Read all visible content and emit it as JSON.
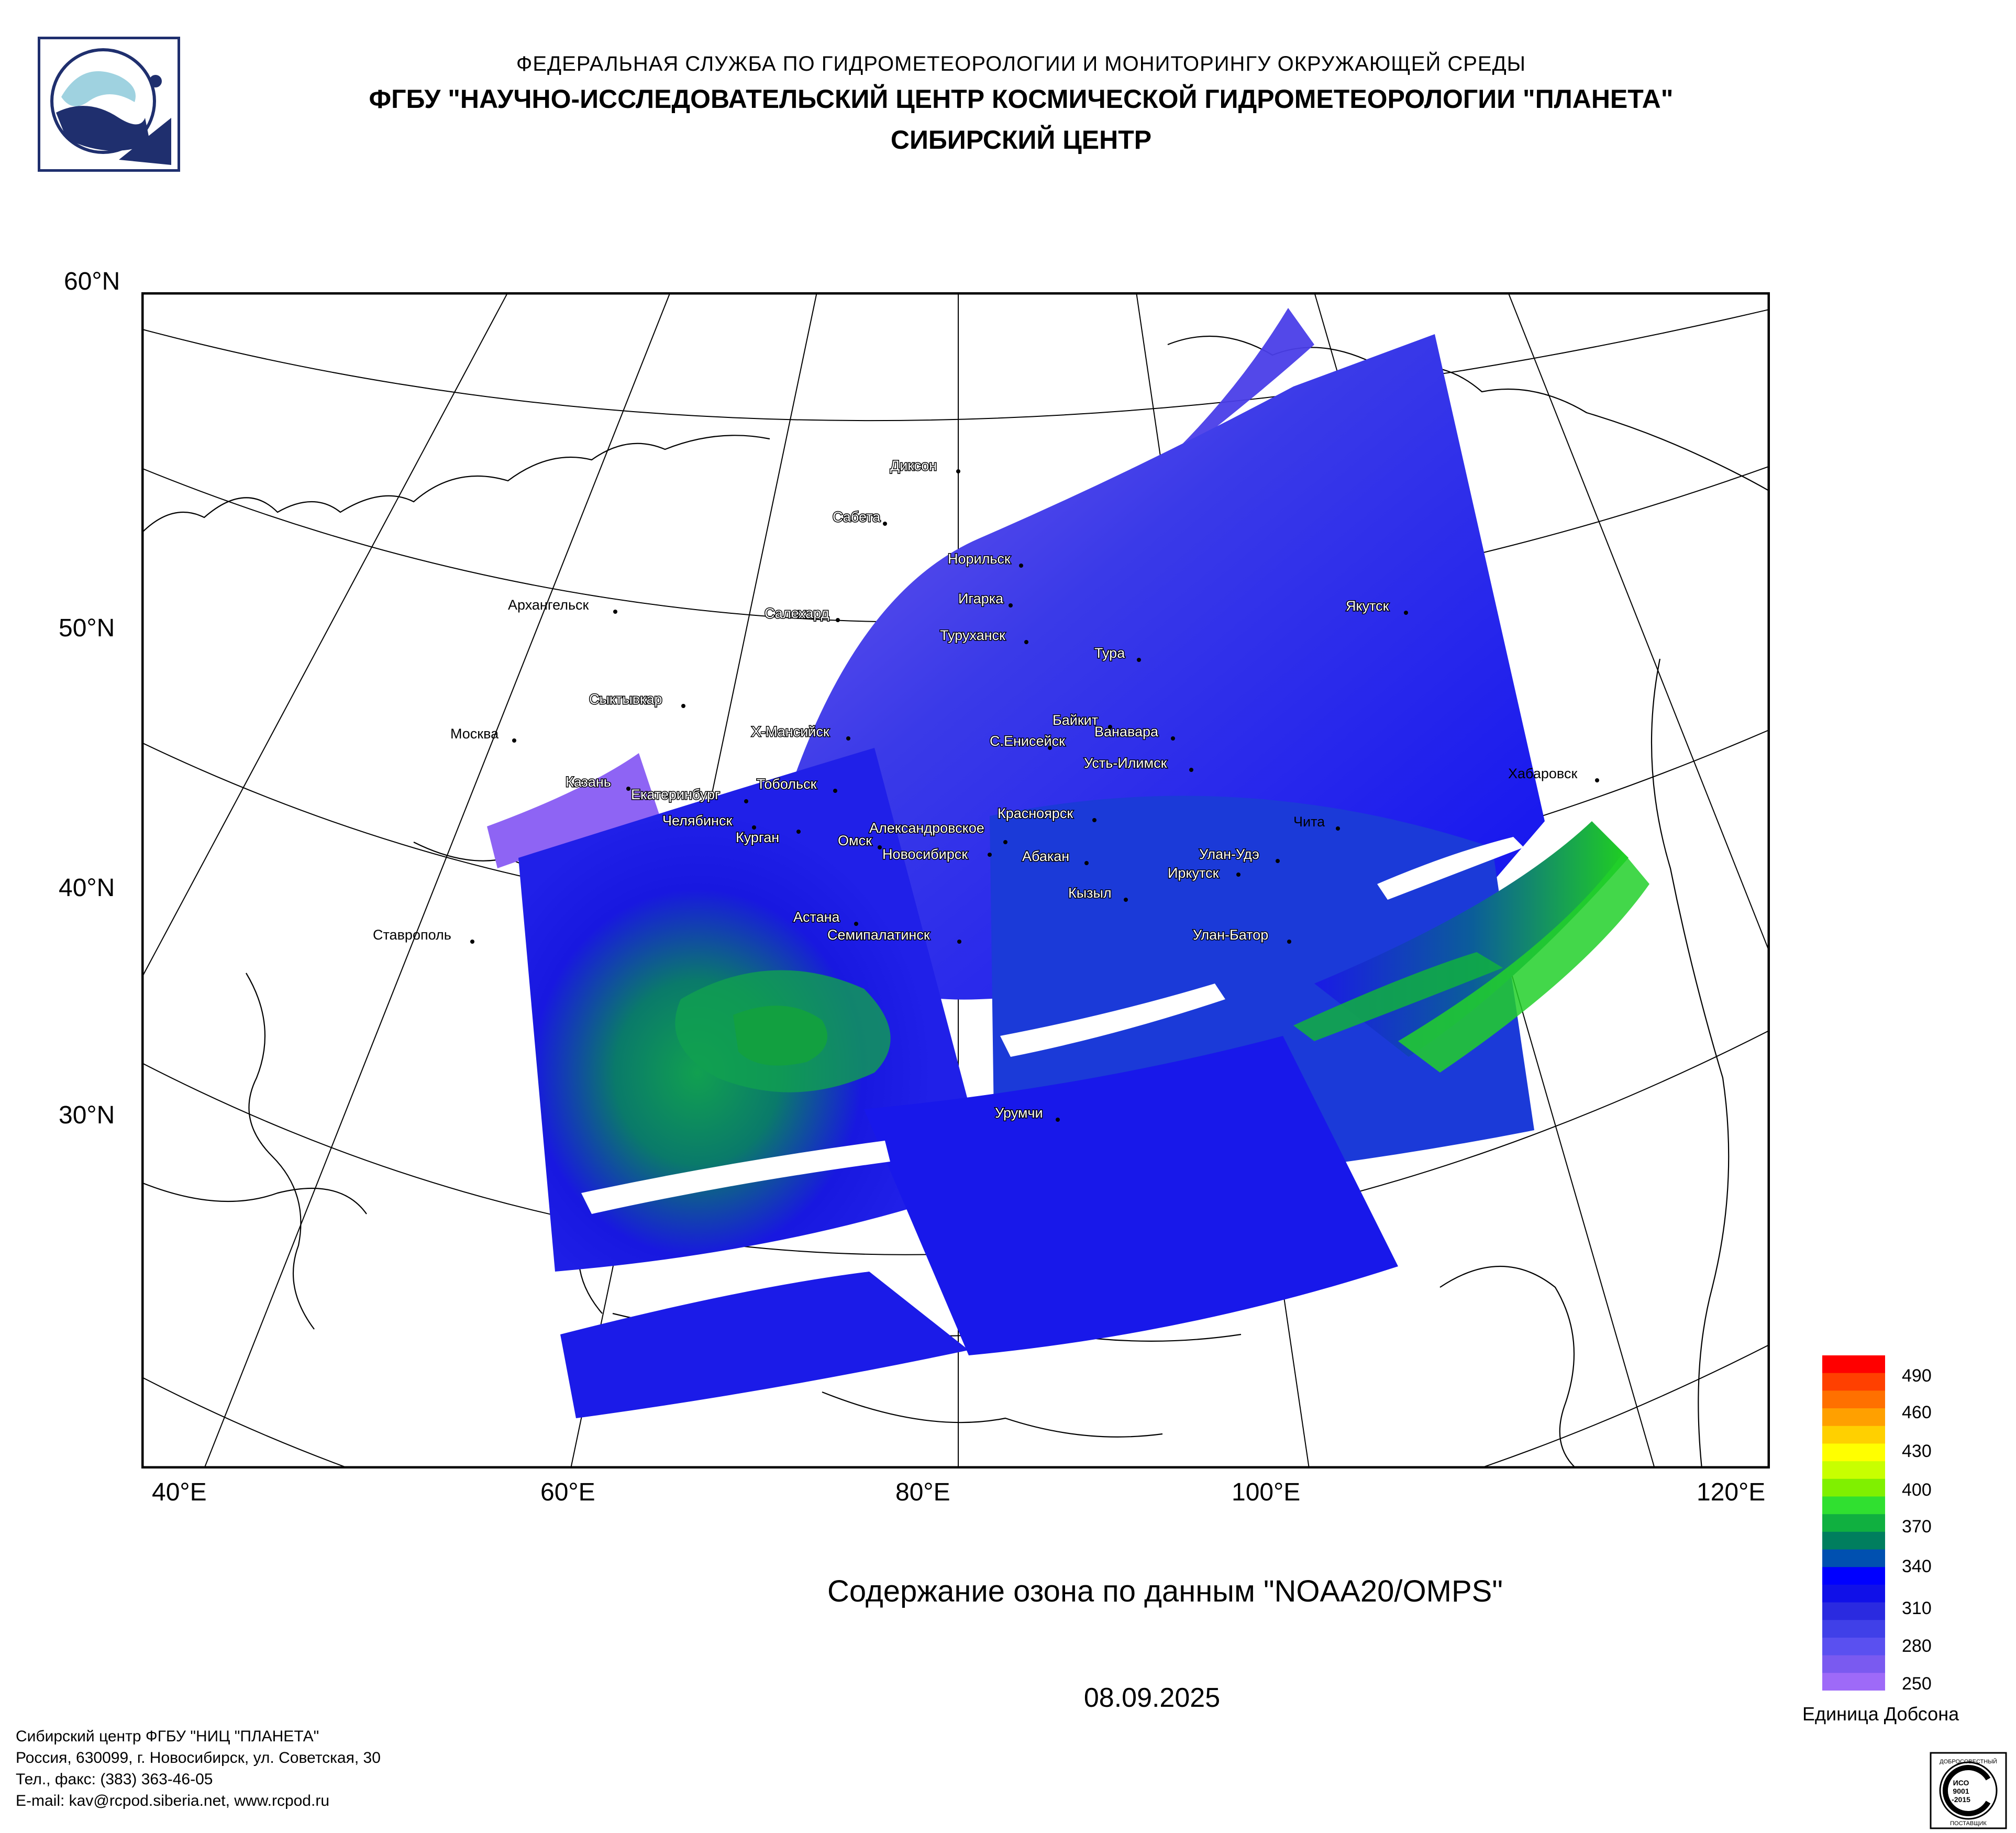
{
  "header": {
    "line1": "ФЕДЕРАЛЬНАЯ СЛУЖБА ПО ГИДРОМЕТЕОРОЛОГИИ И МОНИТОРИНГУ ОКРУЖАЮЩЕЙ СРЕДЫ",
    "line2": "ФГБУ \"НАУЧНО-ИССЛЕДОВАТЕЛЬСКИЙ ЦЕНТР КОСМИЧЕСКОЙ ГИДРОМЕТЕОРОЛОГИИ \"ПЛАНЕТА\"",
    "line3": "СИБИРСКИЙ ЦЕНТР"
  },
  "map": {
    "lat_labels": [
      "60°N",
      "50°N",
      "40°N",
      "30°N"
    ],
    "lon_labels": [
      "40°E",
      "60°E",
      "80°E",
      "100°E",
      "120°E"
    ],
    "cities": [
      "Диксон",
      "Сабета",
      "Норильск",
      "Игарка",
      "Салехард",
      "Туруханск",
      "Тура",
      "Якутск",
      "Архангельск",
      "Сыктывкар",
      "Москва",
      "Х-Мансийск",
      "Байкит",
      "Ванавара",
      "С.Енисейск",
      "Усть-Илимск",
      "Казань",
      "Тобольск",
      "Екатеринбург",
      "Хабаровск",
      "Челябинск",
      "Курган",
      "Красноярск",
      "Александровское",
      "Омск",
      "Новосибирск",
      "Абакан",
      "Улан-Удэ",
      "Иркутск",
      "Чита",
      "Кызыл",
      "Астана",
      "Семипалатинск",
      "Улан-Батор",
      "Ставрополь",
      "Урумчи"
    ]
  },
  "title": "Содержание озона по данным \"NOAA20/OMPS\"",
  "date": "08.09.2025",
  "scale": {
    "ticks": [
      "490",
      "460",
      "430",
      "400",
      "370",
      "340",
      "310",
      "280",
      "250"
    ],
    "unit": "Единица Добсона",
    "colors": [
      "#ff0000",
      "#ff4000",
      "#ff7000",
      "#ffa000",
      "#ffd000",
      "#ffff00",
      "#c8ff00",
      "#80f000",
      "#30e030",
      "#10b040",
      "#007e5e",
      "#0050b0",
      "#0000ff",
      "#1010e8",
      "#2a2ae0",
      "#4040e8",
      "#5a50f0",
      "#7a5af0",
      "#9e6af8"
    ]
  },
  "footer": {
    "line1": "Сибирский центр ФГБУ \"НИЦ \"ПЛАНЕТА\"",
    "line2": "Россия, 630099, г. Новосибирск, ул. Советская, 30",
    "line3": "Тел., факс: (383) 363-46-05",
    "line4": "E-mail: kav@rcpod.siberia.net, www.rcpod.ru"
  },
  "cert": {
    "text1": "ДОБРОСОВЕСТНЫЙ",
    "text2": "ИСО",
    "text3": "9001",
    "text4": "-2015",
    "text5": "ПОСТАВЩИК"
  }
}
